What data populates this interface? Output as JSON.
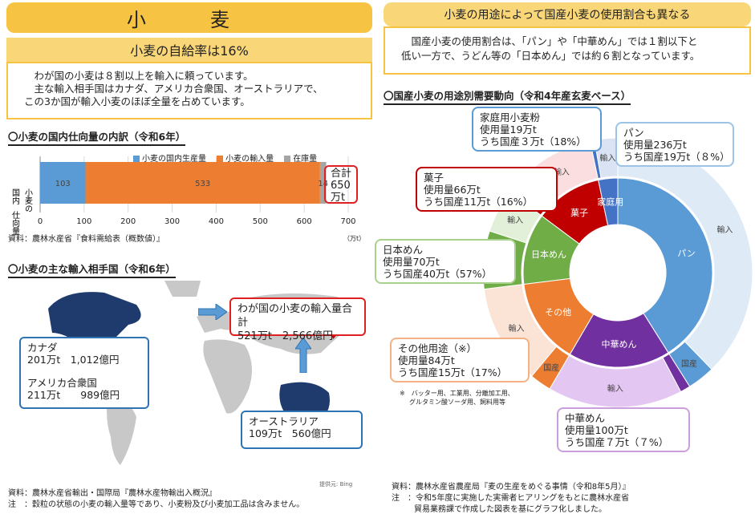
{
  "left": {
    "title": "小　麦",
    "self_sufficiency": "小麦の自給率は16%",
    "description_1": "わが国の小麦は８割以上を輸入に頼っています。",
    "description_2": "主な輸入相手国はカナダ、アメリカ合衆国、オーストラリアで、",
    "description_3": "この3か国が輸入小麦のほぼ全量を占めています。",
    "breakdown_title": "〇小麦の国内仕向量の内訳（令和6年）",
    "breakdown_source": "資料：農林水産省『食料需給表（概数値）』",
    "total_label_1": "合計",
    "total_label_2": "650",
    "total_label_3": "万t",
    "import_title": "〇小麦の主な輸入相手国（令和6年）",
    "total_import_line1": "わが国の小麦の輸入量合計",
    "total_import_line2": "521万t　2,566億円",
    "canada_line1": "カナダ",
    "canada_line2": "201万t　1,012億円",
    "usa_line1": "アメリカ合衆国",
    "usa_line2": "211万t　　989億円",
    "australia_line1": "オーストラリア",
    "australia_line2": "109万t　560億円",
    "map_credit": "提供元: Bing",
    "source_1": "資料：農林水産省輸出・国際局『農林水産物輸出入概況』",
    "source_2": "注　：穀粒の状態の小麦の輸入量等であり、小麦粉及び小麦加工品は含みません。"
  },
  "right": {
    "banner": "小麦の用途によって国産小麦の使用割合も異なる",
    "desc_1": "国産小麦の使用割合は、「パン」や「中華めん」では１割以下と",
    "desc_2": "低い一方で、うどん等の「日本めん」では約６割となっています。",
    "usage_title": "〇国産小麦の用途別需要動向（令和4年産玄麦ベース）",
    "callouts": {
      "home": [
        "家庭用小麦粉",
        "使用量19万t",
        "うち国産３万t（18%）"
      ],
      "bread": [
        "パン",
        "使用量236万t",
        "うち国産19万t（８%）"
      ],
      "sweets": [
        "菓子",
        "使用量66万t",
        "うち国産11万t（16%）"
      ],
      "japanese": [
        "日本めん",
        "使用量70万t",
        "うち国産40万t（57%）"
      ],
      "other": [
        "その他用途（※）",
        "使用量84万t",
        "うち国産15万t（17%）"
      ],
      "chinese": [
        "中華めん",
        "使用量100万t",
        "うち国産７万t（７%）"
      ]
    },
    "note_1": "※　バッター用、工業用、分離加工用、",
    "note_2": "グルタミン酸ソーダ用、飼料用等",
    "source_1": "資料：農林水産省農産局『麦の生産をめぐる事情（令和8年5月）』",
    "source_2": "注　：令和5年度に実施した実需者ヒアリングをもとに農林水産省",
    "source_3": "貿易業務課で作成した図表を基にグラフ化しました。"
  },
  "chart_data": [
    {
      "type": "bar",
      "orientation": "horizontal-stacked",
      "title": "〇小麦の国内仕向量の内訳（令和6年）",
      "ylabel": "小麦の国内仕向量",
      "xlabel": "",
      "unit": "（万t）",
      "categories": [
        ""
      ],
      "series": [
        {
          "name": "小麦の国内生産量",
          "values": [
            103
          ],
          "color": "#5b9bd5"
        },
        {
          "name": "小麦の輸入量",
          "values": [
            533
          ],
          "color": "#ed7d31"
        },
        {
          "name": "在庫量",
          "values": [
            14
          ],
          "color": "#a5a5a5"
        }
      ],
      "xlim": [
        0,
        700
      ],
      "xticks": [
        0,
        100,
        200,
        300,
        400,
        500,
        600,
        700
      ],
      "legend": "top",
      "grid": true
    },
    {
      "type": "pie",
      "title": "〇国産小麦の用途別需要動向（令和4年産玄麦ベース）",
      "inner_ring": [
        {
          "name": "パン",
          "value": 236,
          "color": "#5b9bd5"
        },
        {
          "name": "中華めん",
          "value": 100,
          "color": "#7030a0"
        },
        {
          "name": "その他",
          "value": 84,
          "color": "#ed7d31"
        },
        {
          "name": "日本めん",
          "value": 70,
          "color": "#70ad47"
        },
        {
          "name": "菓子",
          "value": 66,
          "color": "#c00000"
        },
        {
          "name": "家庭用",
          "value": 19,
          "color": "#4472c4"
        }
      ],
      "outer_ring": [
        {
          "name": "輸入",
          "value": 217,
          "color": "#deebf7"
        },
        {
          "name": "国産",
          "value": 19,
          "color": "#5b9bd5"
        },
        {
          "name": "国産",
          "value": 7,
          "color": "#7030a0"
        },
        {
          "name": "輸入",
          "value": 93,
          "color": "#e4c6f2"
        },
        {
          "name": "国産",
          "value": 15,
          "color": "#ed7d31"
        },
        {
          "name": "輸入",
          "value": 69,
          "color": "#fbe4d5"
        },
        {
          "name": "国産",
          "value": 40,
          "color": "#70ad47"
        },
        {
          "name": "輸入",
          "value": 30,
          "color": "#e2f0d9"
        },
        {
          "name": "国産",
          "value": 11,
          "color": "#c00000"
        },
        {
          "name": "輸入",
          "value": 55,
          "color": "#fbdfe0"
        },
        {
          "name": "国産",
          "value": 3,
          "color": "#4472c4"
        },
        {
          "name": "輸入",
          "value": 16,
          "color": "#dae3f3"
        }
      ]
    }
  ]
}
